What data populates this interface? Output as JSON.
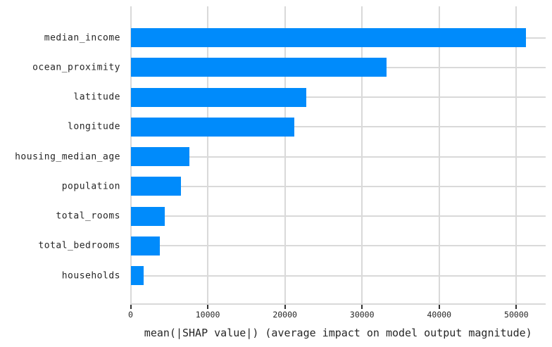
{
  "chart_data": {
    "type": "bar",
    "orientation": "horizontal",
    "title": "",
    "categories": [
      "median_income",
      "ocean_proximity",
      "latitude",
      "longitude",
      "housing_median_age",
      "population",
      "total_rooms",
      "total_bedrooms",
      "households"
    ],
    "values": [
      51200,
      33200,
      22800,
      21200,
      7600,
      6500,
      4400,
      3800,
      1700
    ],
    "xlabel": "mean(|SHAP value|) (average impact on model output magnitude)",
    "ylabel": "",
    "xticks": [
      0,
      10000,
      20000,
      30000,
      40000,
      50000
    ],
    "xtick_labels": [
      "0",
      "10000",
      "20000",
      "30000",
      "40000",
      "50000"
    ],
    "xlim": [
      0,
      53800
    ],
    "grid": true,
    "legend": false,
    "colors": {
      "bar": "#008bfb",
      "grid": "#d9d9d9",
      "tick": "#333333",
      "text": "#262626",
      "background": "#ffffff"
    }
  }
}
